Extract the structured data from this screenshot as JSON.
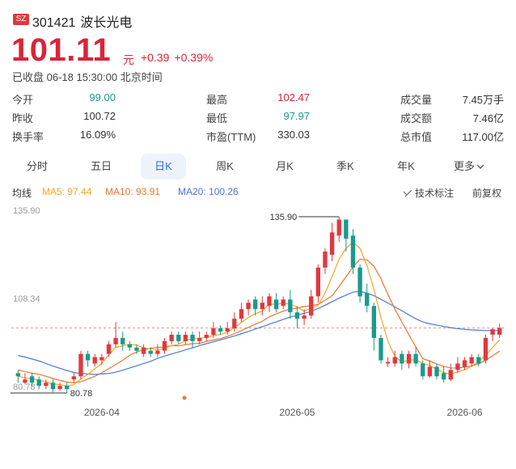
{
  "header": {
    "exchange_badge": "SZ",
    "code": "301421",
    "name": "波长光电",
    "price": "101.11",
    "unit": "元",
    "change": "+0.39",
    "change_pct": "+0.39%",
    "status": "已收盘 06-18 15:30:00 北京时间"
  },
  "stats": {
    "open_label": "今开",
    "open": "99.00",
    "high_label": "最高",
    "high": "102.47",
    "volume_label": "成交量",
    "volume": "7.45万手",
    "prev_label": "昨收",
    "prev": "100.72",
    "low_label": "最低",
    "low": "97.97",
    "amount_label": "成交额",
    "amount": "7.46亿",
    "turnover_label": "换手率",
    "turnover": "16.09%",
    "pe_label": "市盈(TTM)",
    "pe": "330.03",
    "mcap_label": "总市值",
    "mcap": "117.00亿"
  },
  "tabs": [
    "分时",
    "五日",
    "日K",
    "周K",
    "月K",
    "季K",
    "年K",
    "更多"
  ],
  "active_tab": "日K",
  "ma": {
    "label": "均线",
    "ma5": "MA5: 97.44",
    "ma10": "MA10: 93.91",
    "ma20": "MA20: 100.26",
    "ma5_color": "#f5a623",
    "ma10_color": "#e8772e",
    "ma20_color": "#4a78d8"
  },
  "controls": {
    "indicator": "技术标注",
    "adjust": "前复权"
  },
  "colors": {
    "up": "#e0383e",
    "down": "#1a9a8a",
    "accent": "#2b6ad6"
  },
  "chart_data": {
    "type": "candlestick",
    "y_ticks": [
      "135.90",
      "108.34",
      "80.78"
    ],
    "x_ticks": [
      "2026-04",
      "2026-05",
      "2026-06"
    ],
    "annotations": {
      "max": "135.90",
      "min": "80.78"
    },
    "ylim": [
      80.78,
      135.9
    ],
    "current_price": 101.11,
    "candles": [
      [
        87,
        86,
        88,
        84
      ],
      [
        84,
        85,
        87,
        83.5
      ],
      [
        86,
        84,
        87,
        83
      ],
      [
        85,
        83,
        86,
        82
      ],
      [
        83,
        84,
        85,
        82
      ],
      [
        84,
        82,
        85,
        81
      ],
      [
        82,
        83,
        84,
        81.5
      ],
      [
        83,
        82,
        84,
        80.78
      ],
      [
        85,
        86,
        87,
        84
      ],
      [
        86,
        93,
        94,
        85
      ],
      [
        93,
        91,
        94,
        89
      ],
      [
        90,
        92,
        93,
        89
      ],
      [
        91,
        92,
        93,
        89.5
      ],
      [
        93,
        96,
        97,
        92
      ],
      [
        96,
        98,
        103,
        95
      ],
      [
        98,
        96,
        100,
        94
      ],
      [
        96,
        95,
        97,
        94
      ],
      [
        95,
        94,
        96,
        93
      ],
      [
        93,
        95,
        96,
        92
      ],
      [
        94,
        93,
        95,
        92
      ],
      [
        93,
        94,
        96,
        92
      ],
      [
        94,
        97,
        98,
        93
      ],
      [
        97,
        99,
        100,
        96
      ],
      [
        99,
        97,
        100,
        96
      ],
      [
        97,
        99,
        100,
        96
      ],
      [
        99,
        97,
        100,
        95
      ],
      [
        97,
        98,
        100,
        96
      ],
      [
        98,
        99,
        100,
        97
      ],
      [
        99,
        101,
        103,
        98
      ],
      [
        101,
        100,
        102,
        99
      ],
      [
        100,
        101,
        103,
        99
      ],
      [
        101,
        104,
        106,
        100
      ],
      [
        104,
        107,
        109,
        103
      ],
      [
        107,
        109,
        110,
        105
      ],
      [
        110,
        107,
        111,
        105
      ],
      [
        107,
        109,
        111,
        105
      ],
      [
        108,
        111,
        112,
        106
      ],
      [
        110,
        107,
        112,
        106
      ],
      [
        108,
        110,
        111,
        107
      ],
      [
        110,
        106,
        113,
        104
      ],
      [
        106,
        104,
        108,
        101
      ],
      [
        104,
        105,
        107,
        102
      ],
      [
        105,
        111,
        113,
        104
      ],
      [
        111,
        120,
        121,
        109
      ],
      [
        120,
        125,
        126,
        118
      ],
      [
        124,
        131,
        134,
        122
      ],
      [
        130,
        135,
        135.9,
        128
      ],
      [
        135,
        129,
        134,
        125
      ],
      [
        130,
        120,
        132,
        118
      ],
      [
        120,
        111,
        121,
        109
      ],
      [
        112,
        108,
        115,
        106
      ],
      [
        108,
        98,
        109,
        94
      ],
      [
        98,
        91,
        99,
        90
      ],
      [
        90,
        90.5,
        92,
        89
      ],
      [
        90,
        92,
        94,
        89
      ],
      [
        93,
        90,
        94,
        88
      ],
      [
        90,
        93,
        94,
        88.5
      ],
      [
        93,
        90,
        95,
        89
      ],
      [
        90,
        86,
        91,
        85
      ],
      [
        86,
        89,
        91,
        85.5
      ],
      [
        89,
        86,
        90,
        85
      ],
      [
        87,
        85,
        89,
        84
      ],
      [
        85,
        88,
        90,
        84.5
      ],
      [
        88,
        90,
        92,
        87
      ],
      [
        89,
        91,
        92,
        88
      ],
      [
        90,
        92,
        93,
        89
      ],
      [
        92,
        90,
        93,
        89
      ],
      [
        91,
        98,
        99,
        90
      ],
      [
        99,
        100.72,
        101,
        97
      ],
      [
        99,
        101.11,
        102.47,
        97.97
      ]
    ],
    "ma5": [
      86,
      85.5,
      85.2,
      84.8,
      84.3,
      83.6,
      83.4,
      83.0,
      83.4,
      85.2,
      86.6,
      88.4,
      90.0,
      92.8,
      95.0,
      95.6,
      96.0,
      95.8,
      94.8,
      94.6,
      94.2,
      94.8,
      95.6,
      96.0,
      97.2,
      97.8,
      97.8,
      98.2,
      98.8,
      99.0,
      99.8,
      101.2,
      102.8,
      104.4,
      105.6,
      106.4,
      108.6,
      108.6,
      108.8,
      108.6,
      107.6,
      106.4,
      107.2,
      108.2,
      112.0,
      117.2,
      122.6,
      126.0,
      128.0,
      126.0,
      120.6,
      113.2,
      104.4,
      97.0,
      92.2,
      90.5,
      91.0,
      91.2,
      90.0,
      89.4,
      88.2,
      87.2,
      86.6,
      87.4,
      88.0,
      89.2,
      90.6,
      92.6,
      95.0,
      97.44
    ],
    "ma10": [
      88,
      87.5,
      87.0,
      86.6,
      86.0,
      85.3,
      84.7,
      84.2,
      84.0,
      84.3,
      85.1,
      86.0,
      87.1,
      88.4,
      89.7,
      91.0,
      92.6,
      93.6,
      94.3,
      94.8,
      95.0,
      95.2,
      95.6,
      95.5,
      95.9,
      96.2,
      96.3,
      96.9,
      97.4,
      97.8,
      98.5,
      99.3,
      100.3,
      101.3,
      102.3,
      103.2,
      104.6,
      105.5,
      106.4,
      107.0,
      107.3,
      107.8,
      108.1,
      108.5,
      109.8,
      111.2,
      114.1,
      117.1,
      120.2,
      122.6,
      122.4,
      120.4,
      116.5,
      111.6,
      107.0,
      103.0,
      99.0,
      95.2,
      91.5,
      90.8,
      89.8,
      89.1,
      88.6,
      88.6,
      88.9,
      89.2,
      89.9,
      91.0,
      92.4,
      93.91
    ],
    "ma20": [
      92.5,
      92.0,
      91.4,
      90.8,
      90.0,
      89.2,
      88.5,
      87.8,
      87.2,
      86.9,
      86.7,
      86.6,
      86.7,
      86.9,
      87.3,
      87.9,
      88.6,
      89.3,
      90.0,
      90.7,
      91.6,
      92.3,
      93.0,
      93.6,
      94.3,
      94.9,
      95.6,
      96.2,
      96.8,
      97.4,
      98.0,
      98.6,
      99.3,
      100.0,
      100.8,
      101.5,
      102.3,
      103.0,
      103.8,
      104.5,
      105.1,
      105.7,
      106.3,
      107.2,
      108.2,
      109.3,
      110.4,
      111.4,
      112.3,
      112.6,
      112.0,
      111.2,
      110.1,
      108.9,
      107.7,
      106.5,
      105.2,
      104.0,
      103.0,
      102.4,
      102.0,
      101.6,
      101.2,
      100.9,
      100.7,
      100.5,
      100.4,
      100.3,
      100.3,
      100.26
    ]
  }
}
